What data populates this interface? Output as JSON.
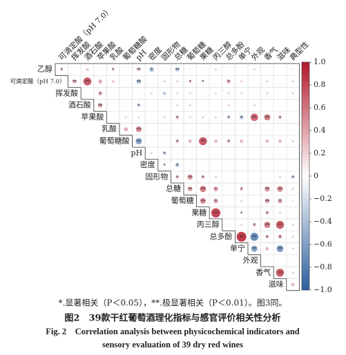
{
  "chart_data": {
    "type": "correlation",
    "variables": [
      "乙醇",
      "可滴定酸（pH 7.0）",
      "挥发酸",
      "酒石酸",
      "苹果酸",
      "乳酸",
      "葡萄糖酸",
      "pH",
      "密度",
      "固形物",
      "总糖",
      "葡萄糖",
      "果糖",
      "丙三醇",
      "总多酚",
      "单宁",
      "外观",
      "香气",
      "滋味",
      "典型性"
    ],
    "values": [
      [
        0.25,
        0.05,
        0.25,
        0.1,
        0.25,
        0.1,
        0.3,
        -0.4,
        0.1,
        -0.35,
        0.15,
        0.1,
        0.2,
        0.1,
        0.05,
        0.2,
        0.1,
        0.05,
        0.15
      ],
      [
        0.35,
        0.7,
        0.35,
        0.25,
        0.05,
        -0.4,
        0.1,
        0.2,
        0.2,
        0.25,
        0.2,
        0.1,
        0.35,
        0.2,
        0.1,
        0.2,
        0.1,
        0.2
      ],
      [
        0.1,
        0.35,
        0.1,
        0.1,
        0.1,
        -0.2,
        -0.3,
        0.2,
        0.2,
        0.1,
        -0.2,
        0.2,
        0.2,
        0.1,
        0.2,
        0.1,
        0.2
      ],
      [
        0.4,
        0.1,
        0.1,
        -0.3,
        0.1,
        0.1,
        0.2,
        0.2,
        0.1,
        -0.1,
        0.2,
        0.1,
        0.2,
        0.1,
        0.1,
        0.1
      ],
      [
        0.1,
        0.2,
        -0.2,
        0.1,
        0.2,
        0.3,
        0.2,
        0.2,
        0.2,
        -0.3,
        -0.35,
        0.65,
        0.55,
        0.3,
        0.1
      ],
      [
        0.35,
        0.5,
        0.1,
        0.1,
        0.1,
        0.1,
        0.1,
        0.1,
        0.1,
        0.1,
        0.1,
        0.1,
        0.1,
        0.1
      ],
      [
        -0.55,
        0.1,
        0.1,
        0.3,
        0.3,
        0.7,
        0.3,
        0.3,
        0.3,
        0.1,
        0.3,
        0.3,
        0.2
      ],
      [
        -0.2,
        -0.3,
        0.1,
        0.1,
        0.1,
        0.1,
        0.1,
        0.1,
        0.1,
        0.1,
        0.1,
        0.1
      ],
      [
        0.2,
        -0.35,
        0.1,
        0.1,
        0.1,
        0.1,
        0.1,
        0.1,
        0.1,
        0.1,
        0.1
      ],
      [
        0.3,
        0.45,
        0.3,
        0.2,
        0.1,
        0.1,
        0.1,
        0.1,
        -0.2,
        -0.3
      ],
      [
        0.4,
        0.55,
        0.4,
        0.1,
        0.3,
        0.1,
        0.45,
        0.5,
        0.2
      ],
      [
        0.5,
        0.4,
        0.1,
        0.2,
        0.1,
        0.4,
        0.4,
        0.15
      ],
      [
        0.8,
        0.1,
        0.2,
        0.1,
        0.3,
        0.2,
        0.1
      ],
      [
        0.1,
        0.2,
        0.3,
        0.55,
        0.7,
        0.2
      ],
      [
        0.85,
        -0.7,
        0.3,
        0.35,
        0.2
      ],
      [
        -0.55,
        0.3,
        -0.6,
        0.2
      ],
      [
        0.1,
        0.1,
        0.1
      ],
      [
        0.7,
        0.2
      ],
      [
        0.3
      ]
    ],
    "significance": [
      [
        "*",
        null,
        null,
        null,
        "*",
        null,
        "**",
        "*",
        null,
        "**",
        null,
        null,
        null,
        null,
        null,
        null,
        null,
        null,
        null
      ],
      [
        "**",
        "**",
        null,
        null,
        null,
        "**",
        null,
        null,
        null,
        "*",
        "*",
        null,
        "*",
        null,
        null,
        null,
        null,
        null
      ],
      [
        null,
        "*",
        null,
        null,
        null,
        null,
        null,
        null,
        null,
        null,
        null,
        null,
        null,
        null,
        null,
        null,
        null
      ],
      [
        "**",
        null,
        null,
        "*",
        null,
        null,
        null,
        null,
        null,
        null,
        null,
        null,
        null,
        null,
        null,
        null
      ],
      [
        null,
        null,
        null,
        null,
        null,
        "*",
        null,
        null,
        null,
        "*",
        "*",
        "**",
        "**",
        "*",
        null
      ],
      [
        null,
        "**",
        null,
        null,
        null,
        null,
        null,
        null,
        null,
        null,
        null,
        null,
        null,
        null
      ],
      [
        "**",
        null,
        null,
        "*",
        null,
        "**",
        null,
        "*",
        null,
        null,
        null,
        null,
        null
      ],
      [
        null,
        "*",
        null,
        null,
        null,
        null,
        null,
        null,
        null,
        null,
        null,
        null
      ],
      [
        "*",
        "*",
        null,
        null,
        null,
        null,
        null,
        null,
        null,
        null,
        null
      ],
      [
        "*",
        "**",
        "*",
        null,
        null,
        null,
        null,
        null,
        null,
        "*"
      ],
      [
        "**",
        "**",
        "*",
        null,
        "*",
        null,
        "**",
        "**",
        null
      ],
      [
        "**",
        "*",
        null,
        null,
        null,
        "**",
        "*",
        null
      ],
      [
        "**",
        null,
        "*",
        null,
        "*",
        null,
        null
      ],
      [
        null,
        null,
        "*",
        "**",
        "**",
        null
      ],
      [
        "**",
        "**",
        "*",
        "*",
        null
      ],
      [
        "**",
        null,
        "**",
        null
      ],
      [
        null,
        null,
        null
      ],
      [
        "**",
        null
      ],
      [
        null
      ]
    ],
    "colormap": [
      "#2c5f9e",
      "#ffffff",
      "#b2182b"
    ],
    "clim": [
      -1,
      1
    ],
    "cticks": [
      {
        "value": 1.0,
        "label": "1.0"
      },
      {
        "value": 0.8,
        "label": "0.8"
      },
      {
        "value": 0.6,
        "label": "0.6"
      },
      {
        "value": 0.4,
        "label": "0.4"
      },
      {
        "value": 0.2,
        "label": "0.2"
      },
      0,
      {
        "value": -0.2,
        "label": "−0.2"
      },
      {
        "value": -0.4,
        "label": "−0.4"
      },
      {
        "value": -0.6,
        "label": "−0.6"
      },
      {
        "value": -0.8,
        "label": "−0.8"
      },
      {
        "value": -1.0,
        "label": "−1.0"
      }
    ],
    "note": "*.显著相关（P＜0.05），**.极显著相关（P＜0.01）。图3同。",
    "caption_cn": "图2　39款干红葡萄酒理化指标与感官评价相关性分析",
    "caption_en_1": "Fig. 2　Correlation analysis between physicochemical indicators and",
    "caption_en_2": "sensory evaluation of 39 dry red wines"
  }
}
